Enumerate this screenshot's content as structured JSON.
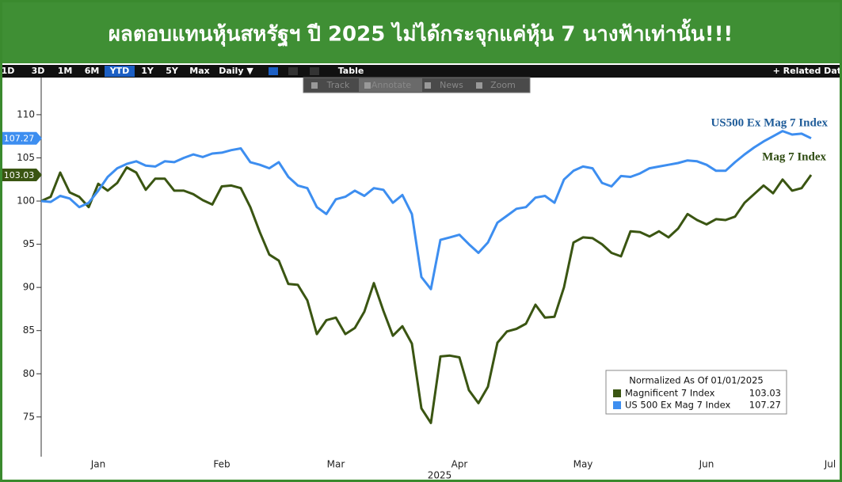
{
  "chart_data": {
    "type": "line",
    "title": "ผลตอบแทนหุ้นสหรัฐฯ ปี 2025 ไม่ได้กระจุกแค่หุ้น 7 นางฟ้าเท่านั้น!!!",
    "xlabel": "2025",
    "categories": [
      null,
      null,
      null,
      null,
      null,
      null,
      "Jan",
      null,
      null,
      null,
      null,
      null,
      null,
      null,
      null,
      null,
      null,
      null,
      null,
      "Feb",
      null,
      null,
      null,
      null,
      null,
      null,
      null,
      null,
      null,
      null,
      null,
      "Mar",
      null,
      null,
      null,
      null,
      null,
      null,
      null,
      null,
      null,
      null,
      null,
      null,
      "Apr",
      null,
      null,
      null,
      null,
      null,
      null,
      null,
      null,
      null,
      null,
      null,
      null,
      "May",
      null,
      null,
      null,
      null,
      null,
      null,
      null,
      null,
      null,
      null,
      null,
      null,
      "Jun",
      null,
      null,
      null,
      null,
      null,
      null,
      null,
      null,
      null,
      null,
      null,
      null,
      "Jul"
    ],
    "series": [
      {
        "name": "Magnificent 7 Index",
        "color": "#3a5512",
        "values": [
          100,
          100.5,
          103.3,
          101,
          100.5,
          99.3,
          102,
          101.2,
          102.1,
          103.9,
          103.3,
          101.3,
          102.6,
          102.6,
          101.2,
          101.2,
          100.8,
          100.1,
          99.6,
          101.7,
          101.8,
          101.5,
          99.3,
          96.4,
          93.8,
          93.1,
          90.4,
          90.3,
          88.5,
          84.6,
          86.2,
          86.5,
          84.6,
          85.3,
          87.2,
          90.5,
          87.3,
          84.4,
          85.5,
          83.5,
          76.0,
          74.3,
          82,
          82.1,
          81.9,
          78.1,
          76.6,
          78.5,
          83.6,
          84.9,
          85.2,
          85.8,
          88,
          86.5,
          86.6,
          90,
          95.2,
          95.8,
          95.7,
          95,
          94,
          93.6,
          96.5,
          96.4,
          95.9,
          96.5,
          95.8,
          96.8,
          98.5,
          97.8,
          97.3,
          97.9,
          97.8,
          98.2,
          99.8,
          100.8,
          101.8,
          100.9,
          102.5,
          101.2,
          101.5,
          103.03,
          null,
          null
        ]
      },
      {
        "name": "US 500 Ex Mag 7 Index",
        "color": "#3d8ef0",
        "values": [
          100,
          99.9,
          100.6,
          100.3,
          99.3,
          99.8,
          101.2,
          102.8,
          103.8,
          104.3,
          104.6,
          104.1,
          104.0,
          104.6,
          104.5,
          105.0,
          105.4,
          105.1,
          105.5,
          105.6,
          105.9,
          106.1,
          104.5,
          104.2,
          103.8,
          104.5,
          102.8,
          101.8,
          101.5,
          99.3,
          98.5,
          100.2,
          100.5,
          101.2,
          100.6,
          101.5,
          101.3,
          99.8,
          100.7,
          98.5,
          91.2,
          89.8,
          95.5,
          95.8,
          96.1,
          95.0,
          94.0,
          95.2,
          97.5,
          98.3,
          99.1,
          99.3,
          100.4,
          100.6,
          99.8,
          102.5,
          103.5,
          104.0,
          103.8,
          102.1,
          101.7,
          102.9,
          102.8,
          103.2,
          103.8,
          104.0,
          104.2,
          104.4,
          104.7,
          104.6,
          104.2,
          103.5,
          103.5,
          104.5,
          105.4,
          106.2,
          106.9,
          107.5,
          108.1,
          107.7,
          107.8,
          107.27,
          null,
          null
        ]
      }
    ],
    "ylim": [
      70.4,
      114.3
    ],
    "yticks": [
      75,
      80,
      85,
      90,
      95,
      100,
      105,
      110
    ],
    "legend_title": "Normalized As Of 01/01/2025",
    "legend_position": "lower right",
    "annotations": [
      {
        "text": "US500 Ex Mag 7 Index",
        "color": "#1f5c99"
      },
      {
        "text": "Mag 7 Index",
        "color": "#2d4a0f"
      }
    ]
  },
  "toolbar": {
    "buttons": [
      "1D",
      "3D",
      "1M",
      "6M",
      "YTD",
      "1Y",
      "5Y",
      "Max",
      "Daily ▼",
      "Table"
    ],
    "active": "YTD",
    "related": "+ Related Dat",
    "overlay": [
      "Track",
      "Annotate",
      "News",
      "Zoom"
    ]
  }
}
